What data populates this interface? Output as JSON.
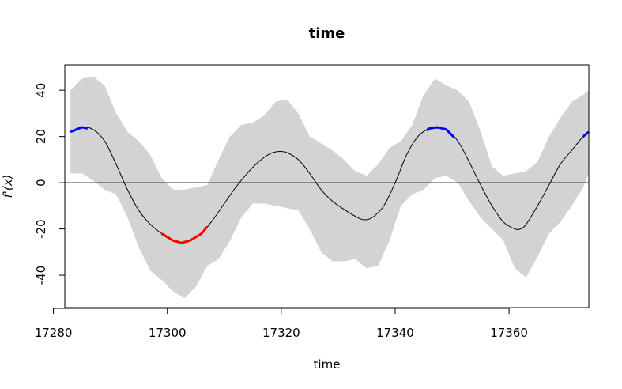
{
  "chart_data": {
    "type": "line",
    "title": "time",
    "xlabel": "time",
    "ylabel": "f'(x)",
    "xlim": [
      17282,
      17374
    ],
    "ylim": [
      -54,
      51
    ],
    "x_ticks": [
      17280,
      17300,
      17320,
      17340,
      17360
    ],
    "y_ticks": [
      -40,
      -20,
      0,
      20,
      40
    ],
    "grid": false,
    "zero_line": true,
    "band_color": "#d3d3d3",
    "line_color": "#000000",
    "increase_color": "#0000ff",
    "decrease_color": "#ff0000",
    "series": [
      {
        "role": "estimate",
        "x": [
          17283,
          17285,
          17287,
          17289,
          17291,
          17293,
          17295,
          17297,
          17299,
          17301,
          17302.5,
          17304,
          17306,
          17308,
          17310,
          17312,
          17314,
          17316,
          17318,
          17319.5,
          17321,
          17323,
          17325,
          17327,
          17329,
          17331,
          17333,
          17334.5,
          17336,
          17338,
          17340,
          17342,
          17344,
          17346,
          17347.5,
          17349,
          17351,
          17353,
          17355,
          17357,
          17359,
          17361,
          17362,
          17363,
          17365,
          17367,
          17369,
          17371,
          17373,
          17374
        ],
        "y": [
          22,
          24,
          23,
          18,
          8,
          -3,
          -12,
          -18,
          -22,
          -25,
          -26,
          -25,
          -22,
          -16,
          -9,
          -2,
          4,
          9,
          12.5,
          13.5,
          13,
          10,
          4,
          -3,
          -8,
          -11.5,
          -14.5,
          -16,
          -15,
          -10,
          0,
          12,
          20,
          23.5,
          24,
          23,
          18,
          9,
          -1,
          -10,
          -17,
          -20,
          -20,
          -18,
          -10,
          -1,
          8,
          14,
          20,
          22
        ]
      },
      {
        "role": "upper",
        "x": [
          17283,
          17285,
          17287,
          17289,
          17291,
          17293,
          17295,
          17297,
          17299,
          17301,
          17303,
          17305,
          17307,
          17309,
          17311,
          17313,
          17315,
          17317,
          17319,
          17321,
          17323,
          17325,
          17327,
          17329,
          17331,
          17333,
          17335,
          17337,
          17339,
          17341,
          17343,
          17345,
          17347,
          17349,
          17351,
          17353,
          17355,
          17357,
          17359,
          17361,
          17363,
          17365,
          17367,
          17369,
          17371,
          17373,
          17374
        ],
        "y": [
          40,
          45,
          46,
          42,
          30,
          22,
          18,
          12,
          2,
          -3,
          -3,
          -2,
          -1,
          10,
          20,
          25,
          26,
          29,
          35,
          36,
          30,
          20,
          17,
          14,
          10,
          5,
          3,
          8,
          15,
          18,
          25,
          38,
          45,
          42,
          40,
          35,
          22,
          7,
          3,
          4,
          5,
          9,
          20,
          28,
          35,
          38,
          40
        ]
      },
      {
        "role": "lower",
        "x": [
          17283,
          17285,
          17287,
          17289,
          17291,
          17293,
          17295,
          17297,
          17299,
          17301,
          17303,
          17305,
          17307,
          17309,
          17311,
          17313,
          17315,
          17317,
          17319,
          17321,
          17323,
          17325,
          17327,
          17329,
          17331,
          17333,
          17335,
          17337,
          17339,
          17341,
          17343,
          17345,
          17347,
          17349,
          17351,
          17353,
          17355,
          17357,
          17359,
          17361,
          17363,
          17365,
          17367,
          17369,
          17371,
          17373,
          17374
        ],
        "y": [
          4,
          4,
          1,
          -3,
          -5,
          -15,
          -28,
          -38,
          -42,
          -47,
          -50,
          -45,
          -36,
          -33,
          -25,
          -15,
          -9,
          -9,
          -10,
          -11,
          -12,
          -20,
          -30,
          -34,
          -34,
          -33,
          -37,
          -36,
          -25,
          -10,
          -5,
          -3,
          2,
          3,
          0,
          -8,
          -15,
          -20,
          -25,
          -37,
          -41,
          -32,
          -22,
          -17,
          -10,
          -2,
          4
        ]
      }
    ],
    "highlights": [
      {
        "kind": "increasing",
        "x_from": 17283,
        "x_to": 17286
      },
      {
        "kind": "decreasing",
        "x_from": 17299,
        "x_to": 17307
      },
      {
        "kind": "increasing",
        "x_from": 17345.5,
        "x_to": 17350.5
      },
      {
        "kind": "increasing",
        "x_from": 17373,
        "x_to": 17374
      }
    ]
  }
}
